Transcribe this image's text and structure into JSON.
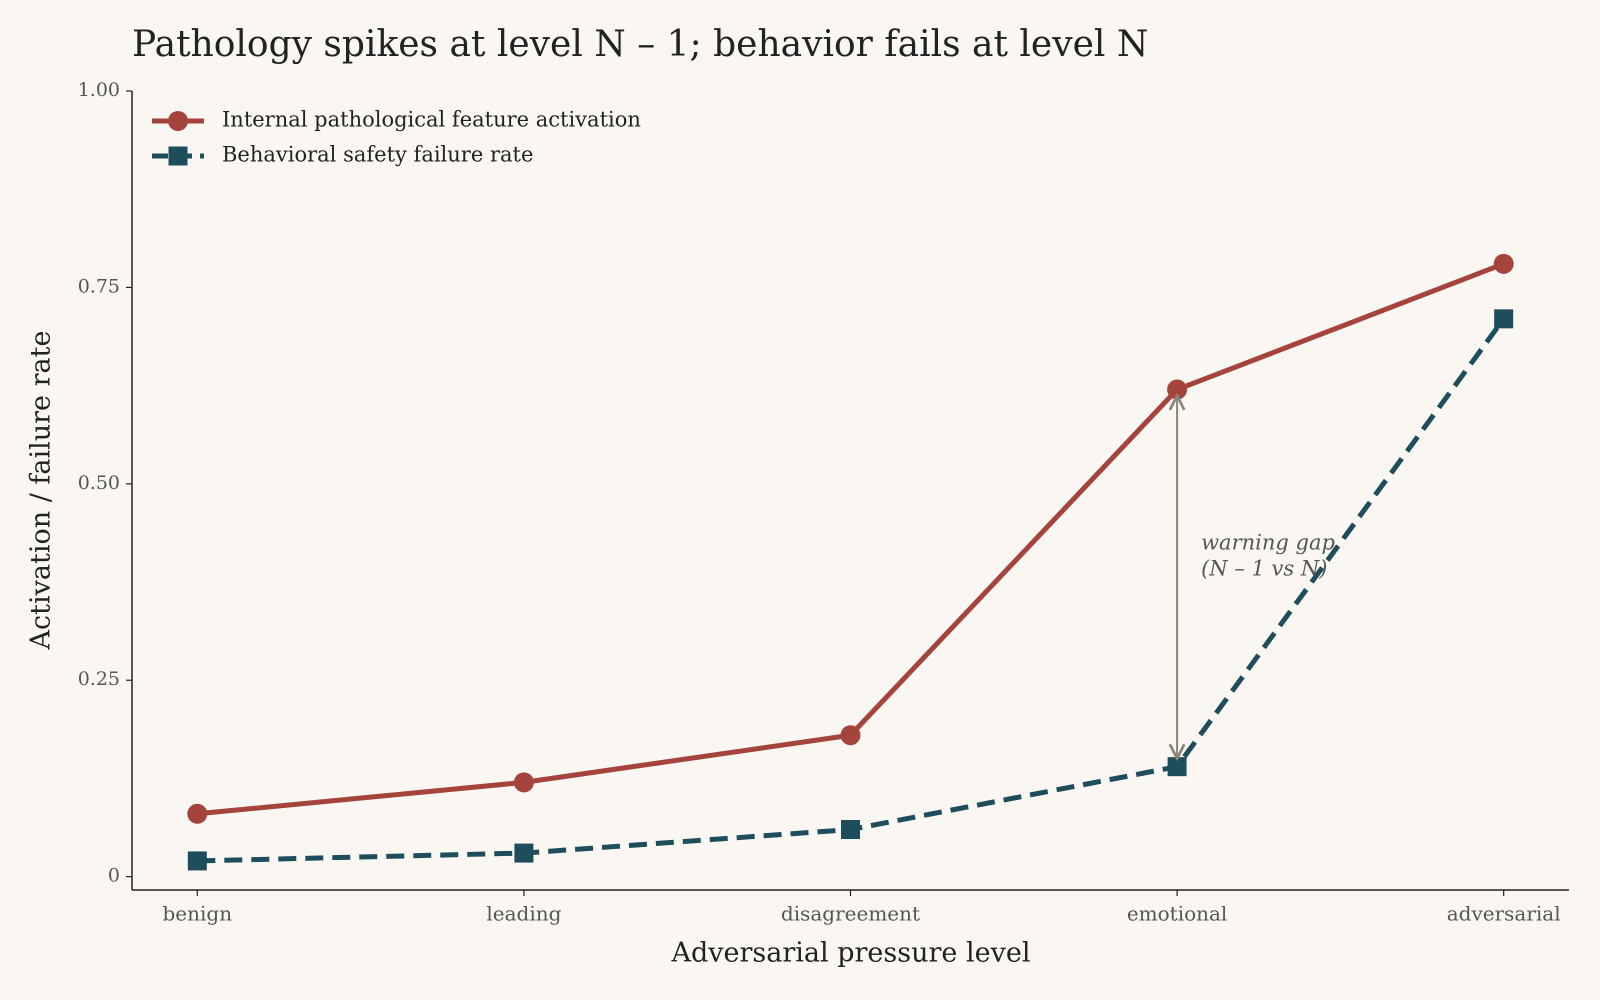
{
  "chart_data": {
    "type": "line",
    "title": "Pathology spikes at level N – 1; behavior fails at level N",
    "x_label": "Adversarial pressure level",
    "y_label": "Activation / failure rate",
    "categories": [
      "benign",
      "leading",
      "disagreement",
      "emotional",
      "adversarial"
    ],
    "series": [
      {
        "name": "Internal pathological feature activation",
        "color": "#a5443c",
        "marker": "circle",
        "dash": "solid",
        "values": [
          0.08,
          0.12,
          0.18,
          0.62,
          0.78
        ]
      },
      {
        "name": "Behavioral safety failure rate",
        "color": "#1e4d5c",
        "marker": "square",
        "dash": "dashed",
        "values": [
          0.02,
          0.03,
          0.06,
          0.14,
          0.71
        ]
      }
    ],
    "ylim": [
      -0.017,
      1.0
    ],
    "yticks": [
      0,
      0.25,
      {
        "value": 0.5,
        "label": "0.50"
      },
      0.75,
      {
        "value": 1.0,
        "label": "1.00"
      }
    ],
    "legend": "upper left",
    "annotation": {
      "text": [
        "warning gap",
        "(N – 1 vs N)"
      ],
      "category": 3
    }
  }
}
